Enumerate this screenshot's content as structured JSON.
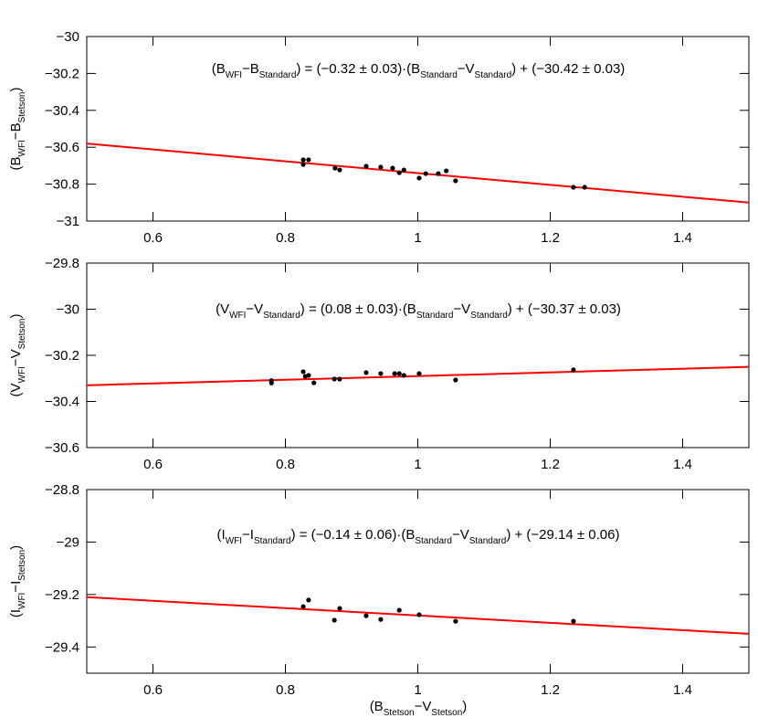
{
  "chart_data": [
    {
      "type": "scatter",
      "ylabel": [
        "(B",
        "WFI",
        "−B",
        "Stetson",
        ")"
      ],
      "annotation": [
        "(B",
        "WFI",
        "−B",
        "Standard",
        ")  =  (−0.32 ± 0.03)·(B",
        "Standard",
        "−V",
        "Standard",
        ")  +  (−30.42 ± 0.03)"
      ],
      "xlim": [
        0.5,
        1.5
      ],
      "xticks": [
        0.6,
        0.8,
        1,
        1.2,
        1.4
      ],
      "ylim": [
        -31,
        -30
      ],
      "yticks": [
        {
          "value": -30,
          "label": "−30"
        },
        {
          "value": -30.2,
          "label": "−30.2"
        },
        {
          "value": -30.4,
          "label": "−30.4"
        },
        {
          "value": -30.6,
          "label": "−30.6"
        },
        {
          "value": -30.8,
          "label": "−30.8"
        },
        {
          "value": -31,
          "label": "−31"
        }
      ],
      "series": [
        {
          "color": "#000000",
          "x": [
            0.827,
            0.827,
            0.835,
            0.875,
            0.882,
            0.922,
            0.944,
            0.962,
            0.972,
            0.979,
            1.002,
            1.012,
            1.031,
            1.043,
            1.057,
            1.235,
            1.252
          ],
          "values": [
            -30.668,
            -30.693,
            -30.668,
            -30.713,
            -30.723,
            -30.703,
            -30.708,
            -30.713,
            -30.738,
            -30.723,
            -30.767,
            -30.743,
            -30.743,
            -30.728,
            -30.782,
            -30.817,
            -30.817
          ]
        }
      ],
      "fit": {
        "color": "#ff0000",
        "x": [
          0.5,
          1.5
        ],
        "values": [
          -30.58,
          -30.9
        ]
      }
    },
    {
      "type": "scatter",
      "ylabel": [
        "(V",
        "WFI",
        "−V",
        "Stetson",
        ")"
      ],
      "annotation": [
        "(V",
        "WFI",
        "−V",
        "Standard",
        ")  =  (0.08 ± 0.03)·(B",
        "Standard",
        "−V",
        "Standard",
        ")  +  (−30.37 ± 0.03)"
      ],
      "xlim": [
        0.5,
        1.5
      ],
      "xticks": [
        0.6,
        0.8,
        1,
        1.2,
        1.4
      ],
      "ylim": [
        -30.6,
        -29.8
      ],
      "yticks": [
        {
          "value": -29.8,
          "label": "−29.8"
        },
        {
          "value": -30,
          "label": "−30"
        },
        {
          "value": -30.2,
          "label": "−30.2"
        },
        {
          "value": -30.4,
          "label": "−30.4"
        },
        {
          "value": -30.6,
          "label": "−30.6"
        }
      ],
      "series": [
        {
          "color": "#000000",
          "x": [
            0.779,
            0.779,
            0.827,
            0.83,
            0.835,
            0.843,
            0.874,
            0.882,
            0.922,
            0.944,
            0.965,
            0.972,
            0.979,
            1.002,
            1.057,
            1.235
          ],
          "values": [
            -30.31,
            -30.32,
            -30.271,
            -30.291,
            -30.287,
            -30.319,
            -30.303,
            -30.303,
            -30.275,
            -30.279,
            -30.279,
            -30.279,
            -30.287,
            -30.279,
            -30.307,
            -30.263
          ]
        }
      ],
      "fit": {
        "color": "#ff0000",
        "x": [
          0.5,
          1.5
        ],
        "values": [
          -30.33,
          -30.25
        ]
      }
    },
    {
      "type": "scatter",
      "ylabel": [
        "(I",
        "WFI",
        "−I",
        "Stetson",
        ")"
      ],
      "xlabel": [
        "(B",
        "Stetson",
        "−V",
        "Stetson",
        ")"
      ],
      "annotation": [
        "(I",
        "WFI",
        "−I",
        "Standard",
        ")  =  (−0.14 ± 0.06)·(B",
        "Standard",
        "−V",
        "Standard",
        ")  +  (−29.14 ± 0.06)"
      ],
      "xlim": [
        0.5,
        1.5
      ],
      "xticks": [
        0.6,
        0.8,
        1,
        1.2,
        1.4
      ],
      "ylim": [
        -29.5,
        -28.8
      ],
      "yticks": [
        {
          "value": -28.8,
          "label": "−28.8"
        },
        {
          "value": -29,
          "label": "−29"
        },
        {
          "value": -29.2,
          "label": "−29.2"
        },
        {
          "value": -29.4,
          "label": "−29.4"
        }
      ],
      "series": [
        {
          "color": "#000000",
          "x": [
            0.827,
            0.835,
            0.874,
            0.882,
            0.922,
            0.944,
            0.972,
            1.002,
            1.057,
            1.235
          ],
          "values": [
            -29.246,
            -29.221,
            -29.298,
            -29.253,
            -29.281,
            -29.295,
            -29.26,
            -29.277,
            -29.302,
            -29.302
          ]
        }
      ],
      "fit": {
        "color": "#ff0000",
        "x": [
          0.5,
          1.5
        ],
        "values": [
          -29.21,
          -29.35
        ]
      }
    }
  ]
}
